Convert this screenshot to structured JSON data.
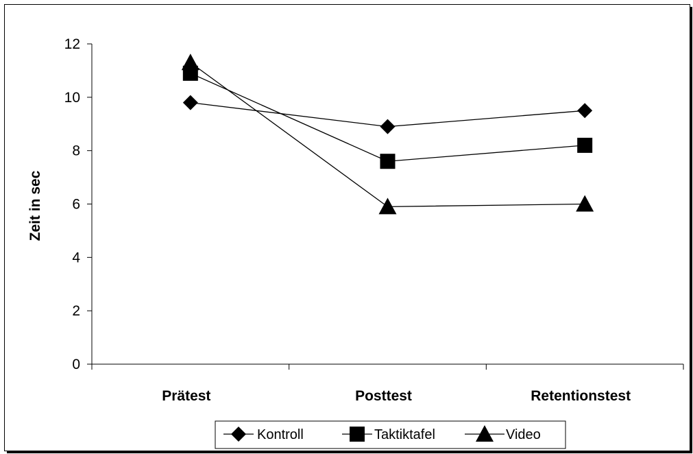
{
  "chart_data": {
    "type": "line",
    "ylabel": "Zeit in sec",
    "xlabel": "",
    "title": "",
    "categories": [
      "Prätest",
      "Posttest",
      "Retentionstest"
    ],
    "ylim": [
      0,
      12
    ],
    "yticks": [
      "0",
      "2",
      "4",
      "6",
      "8",
      "10",
      "12"
    ],
    "grid": false,
    "legend_position": "bottom",
    "series": [
      {
        "name": "Kontroll",
        "marker": "diamond",
        "values": [
          9.8,
          8.9,
          9.5
        ]
      },
      {
        "name": "Taktiktafel",
        "marker": "square",
        "values": [
          10.9,
          7.6,
          8.2
        ]
      },
      {
        "name": "Video",
        "marker": "triangle",
        "values": [
          11.3,
          5.9,
          6.0
        ]
      }
    ],
    "colors": {
      "line": "#000000",
      "marker": "#000000",
      "background": "#ffffff"
    }
  }
}
